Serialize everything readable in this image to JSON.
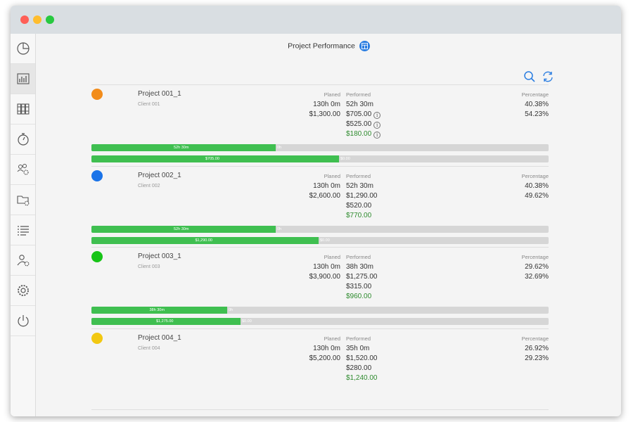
{
  "page": {
    "title": "Project Performance"
  },
  "sidebar": {
    "items": [
      {
        "icon": "pie-chart-icon"
      },
      {
        "icon": "bar-chart-icon",
        "active": true
      },
      {
        "icon": "binders-icon"
      },
      {
        "icon": "stopwatch-icon"
      },
      {
        "icon": "team-settings-icon"
      },
      {
        "icon": "folder-settings-icon"
      },
      {
        "icon": "list-icon"
      },
      {
        "icon": "user-settings-icon"
      },
      {
        "icon": "gear-icon"
      },
      {
        "icon": "power-icon"
      }
    ]
  },
  "toolbar": {
    "search_icon": "search-icon",
    "refresh_icon": "refresh-icon"
  },
  "labels": {
    "planed": "Planed",
    "performed": "Performed",
    "percentage": "Percentage"
  },
  "projects": [
    {
      "name": "Project 001_1",
      "client": "Client 001",
      "color": "#f28c1a",
      "planed_time": "130h 0m",
      "planed_cost": "$1,300.00",
      "performed_time": "52h 30m",
      "performed_cost": "$705.00",
      "performed_extra": "$525.00",
      "performed_remaining": "$180.00",
      "pct_time": "40.38%",
      "pct_cost": "54.23%",
      "info_icons": true,
      "bar_time": {
        "fraction": 0.4038,
        "label": "52h 30m",
        "rest_label": "0h"
      },
      "bar_cost": {
        "fraction": 0.5423,
        "label": "$705.00",
        "rest_label": "$0.00"
      }
    },
    {
      "name": "Project 002_1",
      "client": "Client 002",
      "color": "#1a73e8",
      "planed_time": "130h 0m",
      "planed_cost": "$2,600.00",
      "performed_time": "52h 30m",
      "performed_cost": "$1,290.00",
      "performed_extra": "$520.00",
      "performed_remaining": "$770.00",
      "pct_time": "40.38%",
      "pct_cost": "49.62%",
      "info_icons": false,
      "bar_time": {
        "fraction": 0.4038,
        "label": "52h 30m",
        "rest_label": "0h"
      },
      "bar_cost": {
        "fraction": 0.4962,
        "label": "$1,290.00",
        "rest_label": "$0.00"
      }
    },
    {
      "name": "Project 003_1",
      "client": "Client 003",
      "color": "#17c417",
      "planed_time": "130h 0m",
      "planed_cost": "$3,900.00",
      "performed_time": "38h 30m",
      "performed_cost": "$1,275.00",
      "performed_extra": "$315.00",
      "performed_remaining": "$960.00",
      "pct_time": "29.62%",
      "pct_cost": "32.69%",
      "info_icons": false,
      "bar_time": {
        "fraction": 0.2962,
        "label": "38h 30m",
        "rest_label": "0h"
      },
      "bar_cost": {
        "fraction": 0.3269,
        "label": "$1,275.00",
        "rest_label": "$0.00"
      }
    },
    {
      "name": "Project 004_1",
      "client": "Client 004",
      "color": "#f2c811",
      "planed_time": "130h 0m",
      "planed_cost": "$5,200.00",
      "performed_time": "35h 0m",
      "performed_cost": "$1,520.00",
      "performed_extra": "$280.00",
      "performed_remaining": "$1,240.00",
      "pct_time": "26.92%",
      "pct_cost": "29.23%",
      "info_icons": false,
      "bar_time": null,
      "bar_cost": null
    }
  ]
}
